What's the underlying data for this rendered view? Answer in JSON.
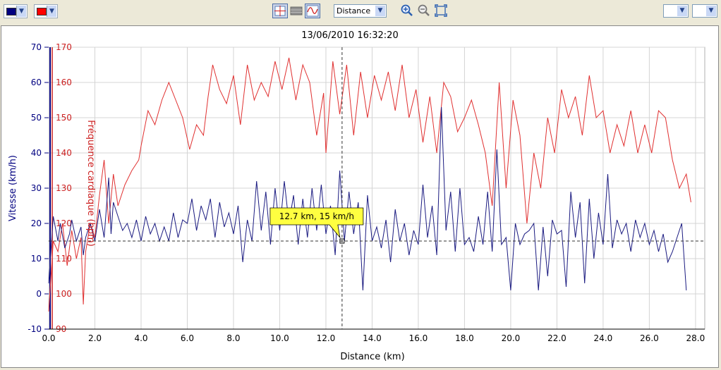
{
  "toolbar": {
    "color1": "#000080",
    "color2": "#ff0000",
    "crosshair_icon": "crosshair-icon",
    "bars_icon": "bars-icon",
    "wave_icon": "wave-icon",
    "axis_select_value": "Distance",
    "zoom_in_icon": "zoom-in-icon",
    "zoom_out_icon": "zoom-out-icon",
    "zoom_fit_icon": "zoom-fit-icon",
    "right_select1_value": "",
    "right_select2_value": ""
  },
  "chart_data": {
    "type": "line",
    "title": "13/06/2010 16:32:20",
    "xlabel": "Distance (km)",
    "ylabel_left": "Vitesse (km/h)",
    "ylabel_right": "Fréquence cardiaque (bpm)",
    "xlim": [
      0,
      28.4
    ],
    "ylim_left": [
      -10,
      70
    ],
    "ylim_right": [
      90,
      170
    ],
    "x_ticks": [
      "0.0",
      "2.0",
      "4.0",
      "6.0",
      "8.0",
      "10.0",
      "12.0",
      "14.0",
      "16.0",
      "18.0",
      "20.0",
      "22.0",
      "24.0",
      "26.0",
      "28.0"
    ],
    "y_ticks_left": [
      "-10",
      "0",
      "10",
      "20",
      "30",
      "40",
      "50",
      "60",
      "70"
    ],
    "y_ticks_right": [
      "90",
      "100",
      "110",
      "120",
      "130",
      "140",
      "150",
      "160",
      "170"
    ],
    "grid": true,
    "cursor": {
      "x": 12.7,
      "y": 15,
      "label": "12.7 km, 15 km/h"
    },
    "series": [
      {
        "axis": "left",
        "color": "#1a1a80",
        "x": [
          0,
          0.2,
          0.4,
          0.5,
          0.7,
          0.9,
          1.0,
          1.2,
          1.4,
          1.5,
          1.6,
          1.8,
          2.0,
          2.2,
          2.4,
          2.6,
          2.7,
          2.8,
          3.0,
          3.2,
          3.4,
          3.6,
          3.8,
          4.0,
          4.2,
          4.4,
          4.6,
          4.8,
          5.0,
          5.2,
          5.4,
          5.6,
          5.8,
          6.0,
          6.2,
          6.4,
          6.6,
          6.8,
          7.0,
          7.2,
          7.4,
          7.6,
          7.8,
          8.0,
          8.2,
          8.4,
          8.6,
          8.8,
          9.0,
          9.2,
          9.4,
          9.6,
          9.8,
          10.0,
          10.2,
          10.4,
          10.6,
          10.8,
          11.0,
          11.2,
          11.4,
          11.6,
          11.8,
          12.0,
          12.2,
          12.4,
          12.6,
          12.8,
          13.0,
          13.2,
          13.4,
          13.6,
          13.8,
          14.0,
          14.2,
          14.4,
          14.6,
          14.8,
          15.0,
          15.2,
          15.4,
          15.6,
          15.8,
          16.0,
          16.2,
          16.4,
          16.6,
          16.8,
          17.0,
          17.2,
          17.4,
          17.6,
          17.8,
          18.0,
          18.2,
          18.4,
          18.6,
          18.8,
          19.0,
          19.2,
          19.4,
          19.6,
          19.8,
          20.0,
          20.2,
          20.4,
          20.6,
          20.8,
          21.0,
          21.2,
          21.4,
          21.6,
          21.8,
          22.0,
          22.2,
          22.4,
          22.6,
          22.8,
          23.0,
          23.2,
          23.4,
          23.6,
          23.8,
          24.0,
          24.2,
          24.4,
          24.6,
          24.8,
          25.0,
          25.2,
          25.4,
          25.6,
          25.8,
          26.0,
          26.2,
          26.4,
          26.6,
          26.8,
          27.0,
          27.2,
          27.4,
          27.6
        ],
        "y": [
          3,
          22,
          15,
          20,
          13,
          17,
          21,
          15,
          19,
          11,
          16,
          20,
          15,
          24,
          16,
          33,
          17,
          26,
          22,
          18,
          20,
          16,
          21,
          15,
          22,
          17,
          20,
          15,
          19,
          15,
          23,
          16,
          21,
          20,
          27,
          18,
          25,
          21,
          27,
          16,
          26,
          19,
          23,
          17,
          25,
          9,
          21,
          15,
          32,
          18,
          29,
          14,
          30,
          18,
          32,
          20,
          28,
          14,
          27,
          16,
          30,
          18,
          31,
          17,
          25,
          11,
          35,
          15,
          29,
          17,
          26,
          1,
          28,
          15,
          19,
          13,
          21,
          9,
          24,
          15,
          20,
          11,
          18,
          14,
          31,
          16,
          25,
          11,
          53,
          18,
          29,
          12,
          30,
          14,
          16,
          12,
          22,
          14,
          29,
          12,
          41,
          14,
          16,
          1,
          20,
          14,
          17,
          18,
          20,
          1,
          19,
          5,
          21,
          17,
          18,
          2,
          29,
          16,
          26,
          3,
          27,
          10,
          23,
          14,
          34,
          13,
          21,
          17,
          20,
          12,
          21,
          16,
          20,
          14,
          18,
          12,
          17,
          9,
          12,
          16,
          20,
          1
        ],
        "__x_note": "km"
      },
      {
        "axis": "right",
        "color": "#e03030",
        "x": [
          0,
          0.2,
          0.4,
          0.6,
          0.8,
          1.0,
          1.2,
          1.4,
          1.5,
          1.6,
          1.8,
          2.0,
          2.2,
          2.4,
          2.6,
          2.8,
          3.0,
          3.3,
          3.6,
          3.9,
          4.0,
          4.3,
          4.6,
          4.9,
          5.2,
          5.5,
          5.8,
          6.1,
          6.4,
          6.7,
          6.9,
          7.1,
          7.4,
          7.7,
          8.0,
          8.3,
          8.6,
          8.9,
          9.2,
          9.5,
          9.8,
          10.1,
          10.4,
          10.7,
          11.0,
          11.3,
          11.6,
          11.9,
          12.0,
          12.3,
          12.6,
          12.9,
          13.2,
          13.5,
          13.8,
          14.1,
          14.4,
          14.7,
          15.0,
          15.3,
          15.6,
          15.9,
          16.2,
          16.5,
          16.8,
          17.1,
          17.4,
          17.7,
          18.0,
          18.3,
          18.6,
          18.9,
          19.2,
          19.5,
          19.8,
          20.1,
          20.4,
          20.7,
          21.0,
          21.3,
          21.6,
          21.9,
          22.2,
          22.5,
          22.8,
          23.1,
          23.4,
          23.7,
          24.0,
          24.3,
          24.6,
          24.9,
          25.2,
          25.5,
          25.8,
          26.1,
          26.4,
          26.7,
          27.0,
          27.3,
          27.6,
          27.8
        ],
        "y": [
          95,
          115,
          112,
          120,
          108,
          118,
          110,
          116,
          97,
          112,
          120,
          116,
          128,
          138,
          120,
          134,
          125,
          131,
          135,
          138,
          142,
          152,
          148,
          155,
          160,
          155,
          150,
          141,
          148,
          145,
          156,
          165,
          158,
          154,
          162,
          148,
          165,
          155,
          160,
          156,
          166,
          158,
          167,
          155,
          165,
          160,
          145,
          157,
          140,
          166,
          151,
          165,
          145,
          163,
          150,
          162,
          155,
          163,
          152,
          165,
          150,
          158,
          143,
          156,
          140,
          160,
          156,
          146,
          150,
          155,
          148,
          140,
          125,
          160,
          130,
          155,
          145,
          120,
          140,
          130,
          150,
          140,
          158,
          150,
          156,
          145,
          162,
          150,
          152,
          140,
          148,
          142,
          152,
          140,
          148,
          140,
          152,
          150,
          138,
          130,
          134,
          126
        ]
      }
    ]
  }
}
